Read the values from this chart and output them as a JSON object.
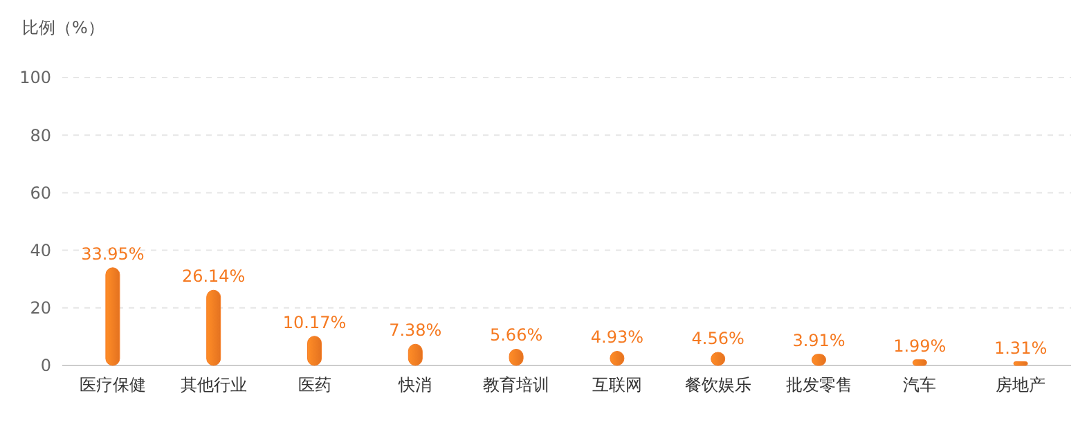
{
  "chart_data": {
    "type": "bar",
    "ylabel": "比例（%）",
    "categories": [
      "医疗保健",
      "其他行业",
      "医药",
      "快消",
      "教育培训",
      "互联网",
      "餐饮娱乐",
      "批发零售",
      "汽车",
      "房地产"
    ],
    "values": [
      33.95,
      26.14,
      10.17,
      7.38,
      5.66,
      4.93,
      4.56,
      3.91,
      1.99,
      1.31
    ],
    "value_labels": [
      "33.95%",
      "26.14%",
      "10.17%",
      "7.38%",
      "5.66%",
      "4.93%",
      "4.56%",
      "3.91%",
      "1.99%",
      "1.31%"
    ],
    "color": "#f57a22",
    "ylim": [
      0,
      100
    ],
    "yticks": [
      0,
      20,
      40,
      60,
      80,
      100
    ],
    "grid": "y"
  }
}
